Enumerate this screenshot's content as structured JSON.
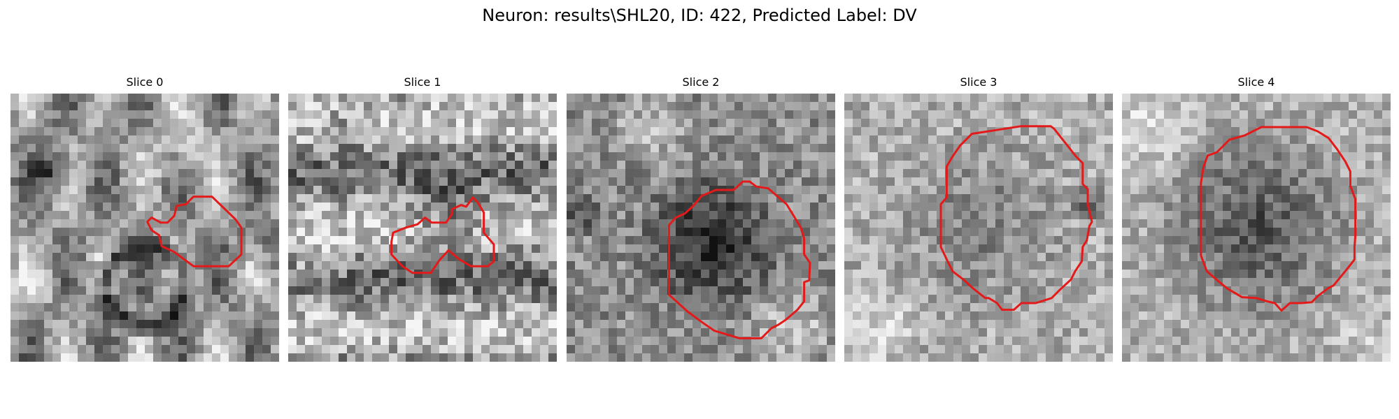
{
  "figure": {
    "title": "Neuron: results\\SHL20, ID: 422, Predicted Label: DV"
  },
  "slices": [
    {
      "title": "Slice 0"
    },
    {
      "title": "Slice 1"
    },
    {
      "title": "Slice 2"
    },
    {
      "title": "Slice 3"
    },
    {
      "title": "Slice 4"
    }
  ],
  "colors": {
    "contour": "#e41a1a",
    "background": "#ffffff"
  }
}
